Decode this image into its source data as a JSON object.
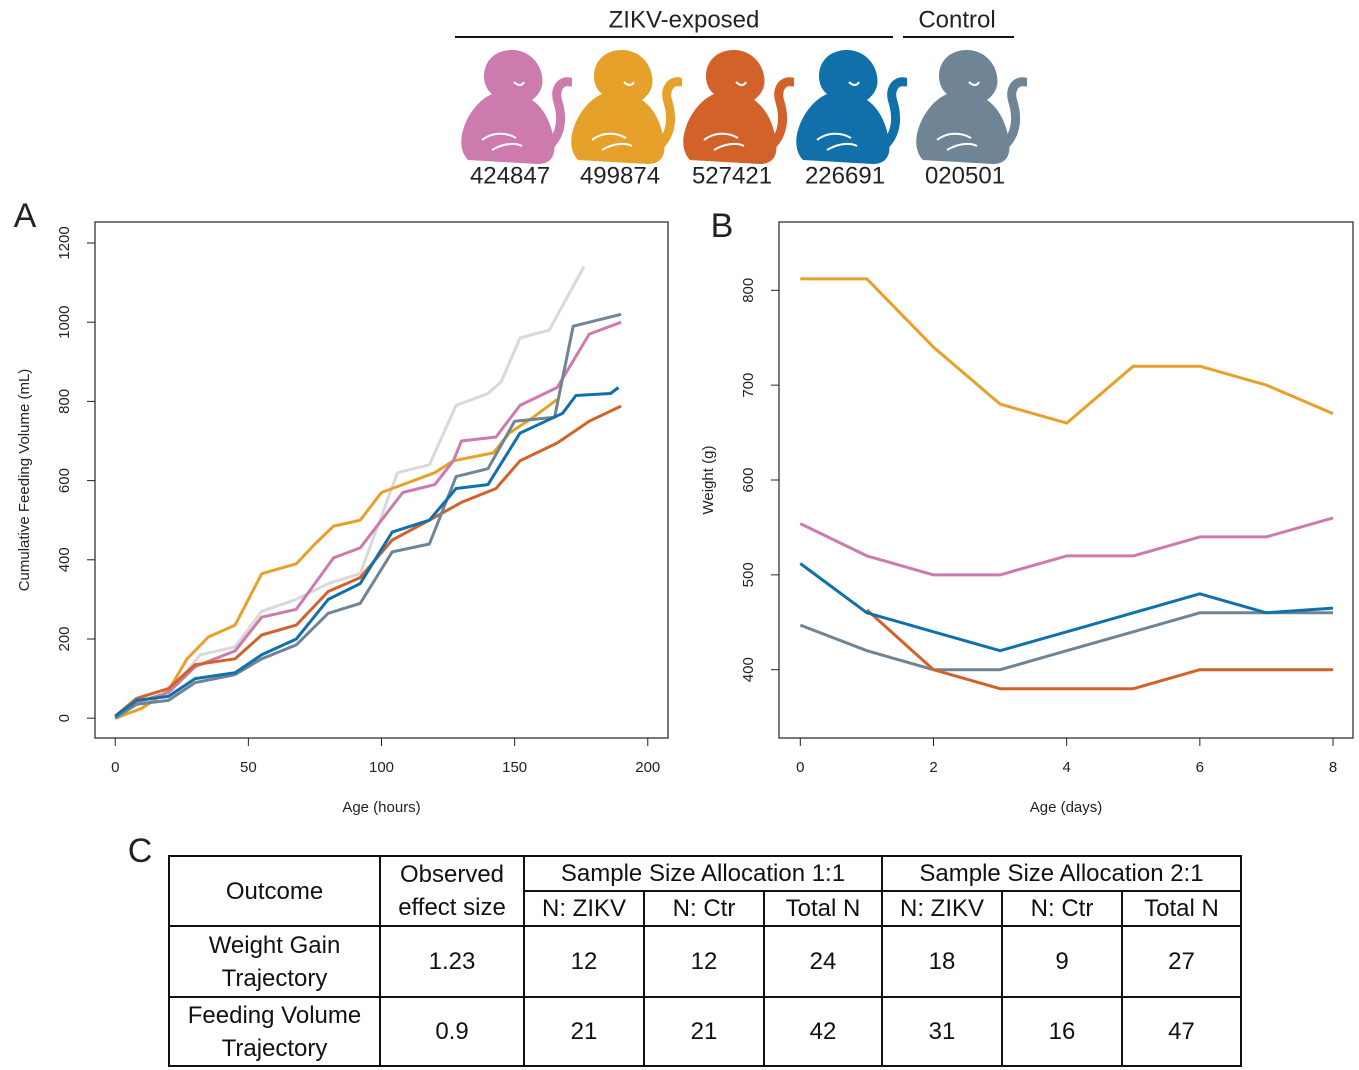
{
  "header": {
    "groups": [
      {
        "label": "ZIKV-exposed"
      },
      {
        "label": "Control"
      }
    ]
  },
  "chart_data": [
    {
      "type": "line",
      "panel_label": "A",
      "xlabel": "Age (hours)",
      "ylabel": "Cumulative Feeding Volume (mL)",
      "xlim": [
        -7.6,
        207.6
      ],
      "ylim": [
        -50,
        1253
      ],
      "xticks": [
        0,
        50,
        100,
        150,
        200
      ],
      "yticks": [
        0,
        200,
        400,
        600,
        800,
        1000,
        1200
      ],
      "series": [
        {
          "name": "424847",
          "color": "#cd7aae",
          "x": [
            0,
            8,
            20,
            30,
            45,
            55,
            68,
            82,
            92,
            100,
            108,
            120,
            127,
            130,
            143,
            152,
            166,
            178,
            190
          ],
          "values": [
            0,
            40,
            65,
            130,
            170,
            255,
            275,
            405,
            430,
            500,
            570,
            590,
            650,
            700,
            710,
            790,
            835,
            970,
            1000
          ]
        },
        {
          "name": "499874",
          "color": "#e6a12a",
          "x": [
            0,
            10,
            20,
            27,
            35,
            45,
            55,
            68,
            75,
            82,
            92,
            100,
            108,
            120,
            127,
            142,
            148,
            157,
            166
          ],
          "values": [
            0,
            25,
            70,
            150,
            205,
            235,
            365,
            390,
            440,
            485,
            500,
            570,
            590,
            620,
            650,
            670,
            720,
            760,
            805
          ]
        },
        {
          "name": "527421",
          "color": "#d2622a",
          "x": [
            0,
            8,
            20,
            30,
            45,
            55,
            68,
            80,
            92,
            104,
            118,
            130,
            143,
            152,
            166,
            178,
            190
          ],
          "values": [
            5,
            50,
            75,
            135,
            150,
            210,
            235,
            320,
            355,
            450,
            500,
            545,
            580,
            650,
            695,
            750,
            788
          ]
        },
        {
          "name": "226691",
          "color": "#1170aa",
          "x": [
            0,
            8,
            20,
            30,
            45,
            55,
            68,
            80,
            92,
            104,
            118,
            128,
            140,
            152,
            168,
            173,
            186,
            189
          ],
          "values": [
            5,
            45,
            55,
            100,
            115,
            160,
            200,
            300,
            340,
            470,
            500,
            580,
            590,
            720,
            770,
            815,
            820,
            835
          ]
        },
        {
          "name": "020501",
          "color": "#6f8495",
          "x": [
            0,
            8,
            20,
            30,
            45,
            55,
            68,
            80,
            92,
            104,
            118,
            128,
            140,
            150,
            165,
            172,
            190
          ],
          "values": [
            0,
            35,
            45,
            90,
            110,
            150,
            185,
            265,
            290,
            420,
            440,
            610,
            630,
            750,
            760,
            990,
            1020
          ]
        },
        {
          "color": "#d9d9d9",
          "x": [
            0,
            10,
            20,
            32,
            45,
            55,
            68,
            80,
            92,
            106,
            118,
            128,
            140,
            145,
            152,
            163,
            176
          ],
          "values": [
            5,
            40,
            65,
            160,
            180,
            270,
            300,
            340,
            365,
            620,
            640,
            790,
            820,
            850,
            960,
            980,
            1140
          ]
        }
      ]
    },
    {
      "type": "line",
      "panel_label": "B",
      "xlabel": "Age (days)",
      "ylabel": "Weight (g)",
      "xlim": [
        -0.32,
        8.3
      ],
      "ylim": [
        328,
        872
      ],
      "xticks": [
        0,
        2,
        4,
        6,
        8
      ],
      "yticks": [
        400,
        500,
        600,
        700,
        800
      ],
      "x": [
        0,
        1,
        2,
        3,
        4,
        5,
        6,
        7,
        8
      ],
      "series": [
        {
          "color": "#e6a12a",
          "values": [
            812,
            812,
            740,
            680,
            660,
            720,
            720,
            700,
            670
          ]
        },
        {
          "color": "#cd7aae",
          "values": [
            554,
            520,
            500,
            500,
            520,
            520,
            540,
            540,
            560
          ]
        },
        {
          "color": "#6f8495",
          "values": [
            447,
            420,
            400,
            400,
            420,
            440,
            460,
            460,
            460
          ]
        },
        {
          "color": "#d2622a",
          "values": [
            null,
            463,
            400,
            380,
            380,
            380,
            400,
            400,
            400
          ]
        },
        {
          "color": "#1170aa",
          "values": [
            512,
            460,
            440,
            420,
            440,
            460,
            480,
            460,
            465
          ]
        }
      ]
    }
  ],
  "table": {
    "panel_label": "C",
    "header": [
      "Outcome",
      "Observed effect size"
    ],
    "groups": [
      {
        "title": "Sample Size Allocation 1:1",
        "columns": [
          "N: ZIKV",
          "N: Ctr",
          "Total N"
        ]
      },
      {
        "title": "Sample Size Allocation 2:1",
        "columns": [
          "N: ZIKV",
          "N: Ctr",
          "Total N"
        ]
      }
    ],
    "rows": [
      [
        "Weight Gain Trajectory",
        1.23,
        12,
        12,
        24,
        18,
        9,
        27
      ],
      [
        "Feeding Volume Trajectory",
        0.9,
        21,
        21,
        42,
        31,
        16,
        47
      ]
    ]
  }
}
